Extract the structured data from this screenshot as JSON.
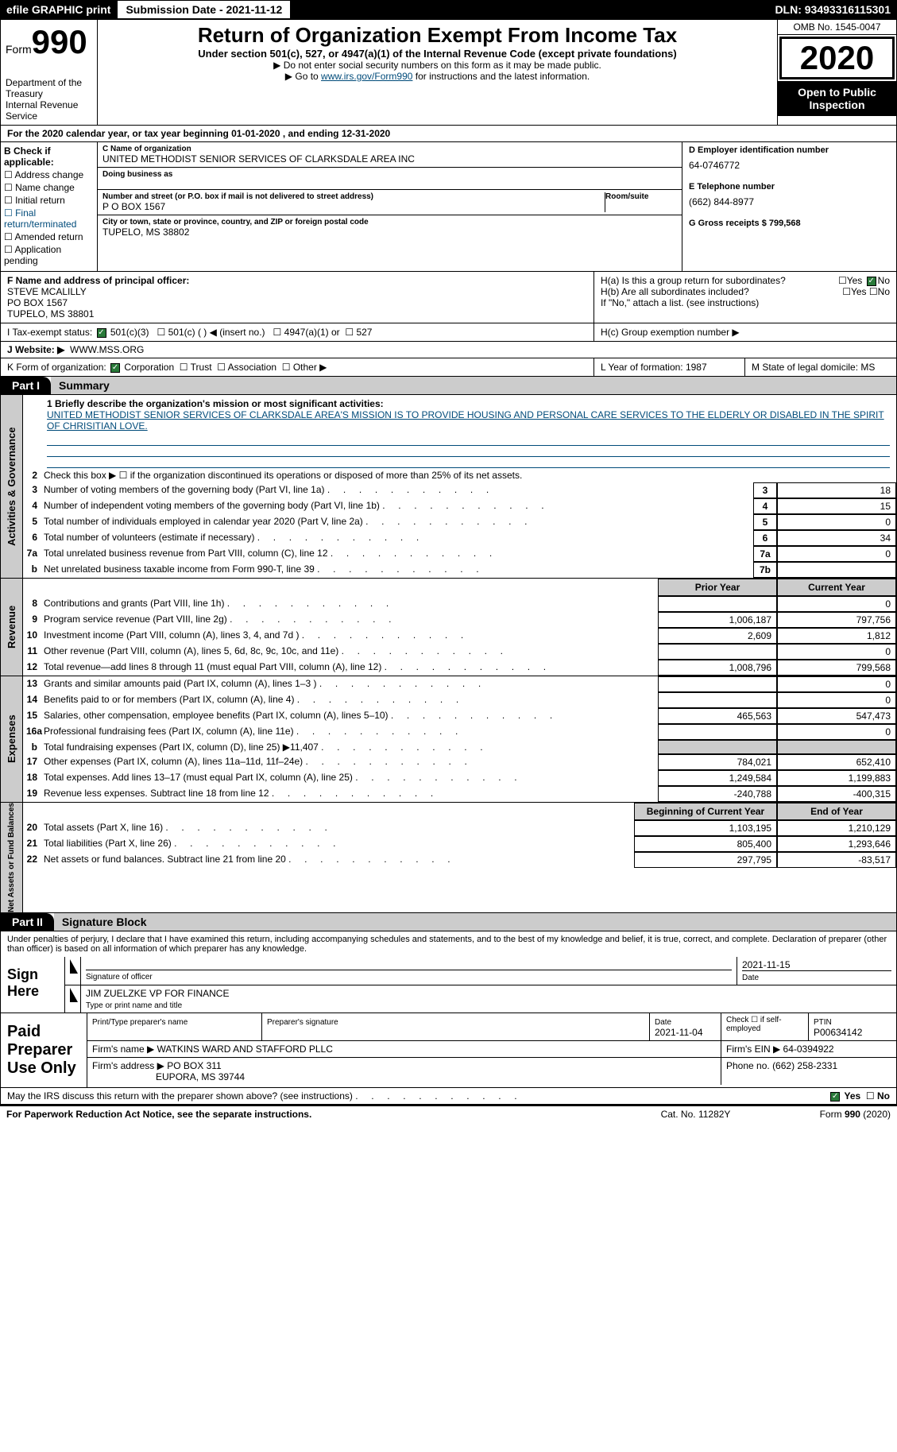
{
  "header": {
    "efile": "efile GRAPHIC print",
    "sub_label": "Submission Date - 2021-11-12",
    "dln": "DLN: 93493316115301"
  },
  "form_box": {
    "form_word": "Form",
    "num": "990",
    "dept": "Department of the Treasury\nInternal Revenue Service"
  },
  "title": {
    "main": "Return of Organization Exempt From Income Tax",
    "sub": "Under section 501(c), 527, or 4947(a)(1) of the Internal Revenue Code (except private foundations)",
    "note1": "▶ Do not enter social security numbers on this form as it may be made public.",
    "note2_a": "▶ Go to ",
    "note2_link": "www.irs.gov/Form990",
    "note2_b": " for instructions and the latest information."
  },
  "right": {
    "omb": "OMB No. 1545-0047",
    "year": "2020",
    "inspect": "Open to Public Inspection"
  },
  "period": "For the 2020 calendar year, or tax year beginning 01-01-2020     , and ending 12-31-2020",
  "B": {
    "head": "B Check if applicable:",
    "items": [
      "Address change",
      "Name change",
      "Initial return",
      "Final return/terminated",
      "Amended return",
      "Application pending"
    ]
  },
  "C": {
    "name_lbl": "C Name of organization",
    "name": "UNITED METHODIST SENIOR SERVICES OF CLARKSDALE AREA INC",
    "dba_lbl": "Doing business as",
    "addr_lbl": "Number and street (or P.O. box if mail is not delivered to street address)",
    "room_lbl": "Room/suite",
    "addr": "P O BOX 1567",
    "city_lbl": "City or town, state or province, country, and ZIP or foreign postal code",
    "city": "TUPELO, MS  38802"
  },
  "D": {
    "ein_lbl": "D Employer identification number",
    "ein": "64-0746772",
    "phone_lbl": "E Telephone number",
    "phone": "(662) 844-8977",
    "gross_lbl": "G Gross receipts $ 799,568"
  },
  "F": {
    "lbl": "F  Name and address of principal officer:",
    "name": "STEVE MCALILLY",
    "addr1": "PO BOX 1567",
    "addr2": "TUPELO, MS  38801"
  },
  "H": {
    "a": "H(a)  Is this a group return for subordinates?",
    "b": "H(b)  Are all subordinates included?",
    "note": "If \"No,\" attach a list. (see instructions)",
    "c": "H(c)  Group exemption number ▶",
    "yes": "Yes",
    "no": "No"
  },
  "I": {
    "lbl": "I     Tax-exempt status:",
    "o1": "501(c)(3)",
    "o2": "501(c) (   ) ◀ (insert no.)",
    "o3": "4947(a)(1) or",
    "o4": "527"
  },
  "J": {
    "lbl": "J    Website: ▶",
    "val": "WWW.MSS.ORG"
  },
  "K": {
    "lbl": "K Form of organization:",
    "o1": "Corporation",
    "o2": "Trust",
    "o3": "Association",
    "o4": "Other ▶"
  },
  "LM": {
    "l": "L Year of formation: 1987",
    "m": "M State of legal domicile: MS"
  },
  "parts": {
    "p1": "Part I",
    "p1_t": "Summary",
    "p2": "Part II",
    "p2_t": "Signature Block"
  },
  "vtabs": {
    "gov": "Activities & Governance",
    "rev": "Revenue",
    "exp": "Expenses",
    "net": "Net Assets or\nFund Balances"
  },
  "mission": {
    "lbl": "1  Briefly describe the organization's mission or most significant activities:",
    "txt": "UNITED METHODIST SENIOR SERVICES OF CLARKSDALE AREA'S MISSION IS TO PROVIDE HOUSING AND PERSONAL CARE SERVICES TO THE ELDERLY OR DISABLED IN THE SPIRIT OF CHRISITIAN LOVE."
  },
  "line2": "Check this box ▶ ☐  if the organization discontinued its operations or disposed of more than 25% of its net assets.",
  "gov_rows": [
    {
      "n": "3",
      "t": "Number of voting members of the governing body (Part VI, line 1a)",
      "box": "3",
      "v": "18"
    },
    {
      "n": "4",
      "t": "Number of independent voting members of the governing body (Part VI, line 1b)",
      "box": "4",
      "v": "15"
    },
    {
      "n": "5",
      "t": "Total number of individuals employed in calendar year 2020 (Part V, line 2a)",
      "box": "5",
      "v": "0"
    },
    {
      "n": "6",
      "t": "Total number of volunteers (estimate if necessary)",
      "box": "6",
      "v": "34"
    },
    {
      "n": "7a",
      "t": "Total unrelated business revenue from Part VIII, column (C), line 12",
      "box": "7a",
      "v": "0"
    },
    {
      "n": "b",
      "t": "Net unrelated business taxable income from Form 990-T, line 39",
      "box": "7b",
      "v": ""
    }
  ],
  "col_hdrs": {
    "py": "Prior Year",
    "cy": "Current Year",
    "by": "Beginning of Current Year",
    "ey": "End of Year"
  },
  "rev_rows": [
    {
      "n": "8",
      "t": "Contributions and grants (Part VIII, line 1h)",
      "py": "",
      "cy": "0"
    },
    {
      "n": "9",
      "t": "Program service revenue (Part VIII, line 2g)",
      "py": "1,006,187",
      "cy": "797,756"
    },
    {
      "n": "10",
      "t": "Investment income (Part VIII, column (A), lines 3, 4, and 7d )",
      "py": "2,609",
      "cy": "1,812"
    },
    {
      "n": "11",
      "t": "Other revenue (Part VIII, column (A), lines 5, 6d, 8c, 9c, 10c, and 11e)",
      "py": "",
      "cy": "0"
    },
    {
      "n": "12",
      "t": "Total revenue—add lines 8 through 11 (must equal Part VIII, column (A), line 12)",
      "py": "1,008,796",
      "cy": "799,568"
    }
  ],
  "exp_rows": [
    {
      "n": "13",
      "t": "Grants and similar amounts paid (Part IX, column (A), lines 1–3 )",
      "py": "",
      "cy": "0"
    },
    {
      "n": "14",
      "t": "Benefits paid to or for members (Part IX, column (A), line 4)",
      "py": "",
      "cy": "0"
    },
    {
      "n": "15",
      "t": "Salaries, other compensation, employee benefits (Part IX, column (A), lines 5–10)",
      "py": "465,563",
      "cy": "547,473"
    },
    {
      "n": "16a",
      "t": "Professional fundraising fees (Part IX, column (A), line 11e)",
      "py": "",
      "cy": "0"
    },
    {
      "n": "b",
      "t": "Total fundraising expenses (Part IX, column (D), line 25) ▶11,407",
      "py": "shade",
      "cy": "shade"
    },
    {
      "n": "17",
      "t": "Other expenses (Part IX, column (A), lines 11a–11d, 11f–24e)",
      "py": "784,021",
      "cy": "652,410"
    },
    {
      "n": "18",
      "t": "Total expenses. Add lines 13–17 (must equal Part IX, column (A), line 25)",
      "py": "1,249,584",
      "cy": "1,199,883"
    },
    {
      "n": "19",
      "t": "Revenue less expenses. Subtract line 18 from line 12",
      "py": "-240,788",
      "cy": "-400,315"
    }
  ],
  "net_rows": [
    {
      "n": "20",
      "t": "Total assets (Part X, line 16)",
      "py": "1,103,195",
      "cy": "1,210,129"
    },
    {
      "n": "21",
      "t": "Total liabilities (Part X, line 26)",
      "py": "805,400",
      "cy": "1,293,646"
    },
    {
      "n": "22",
      "t": "Net assets or fund balances. Subtract line 21 from line 20",
      "py": "297,795",
      "cy": "-83,517"
    }
  ],
  "sig": {
    "decl": "Under penalties of perjury, I declare that I have examined this return, including accompanying schedules and statements, and to the best of my knowledge and belief, it is true, correct, and complete. Declaration of preparer (other than officer) is based on all information of which preparer has any knowledge.",
    "sign_here": "Sign Here",
    "sig_officer": "Signature of officer",
    "date": "Date",
    "date_val": "2021-11-15",
    "name": "JIM ZUELZKE VP FOR FINANCE",
    "name_lbl": "Type or print name and title",
    "paid": "Paid Preparer Use Only",
    "prep_name_lbl": "Print/Type preparer's name",
    "prep_sig_lbl": "Preparer's signature",
    "prep_date_lbl": "Date",
    "prep_date": "2021-11-04",
    "check_lbl": "Check ☐ if self-employed",
    "ptin_lbl": "PTIN",
    "ptin": "P00634142",
    "firm_name_lbl": "Firm's name     ▶",
    "firm_name": "WATKINS WARD AND STAFFORD PLLC",
    "firm_ein_lbl": "Firm's EIN ▶",
    "firm_ein": "64-0394922",
    "firm_addr_lbl": "Firm's address ▶",
    "firm_addr1": "PO BOX 311",
    "firm_addr2": "EUPORA, MS  39744",
    "firm_phone_lbl": "Phone no.",
    "firm_phone": "(662) 258-2331"
  },
  "discuss": "May the IRS discuss this return with the preparer shown above? (see instructions)",
  "footer": {
    "l": "For Paperwork Reduction Act Notice, see the separate instructions.",
    "c": "Cat. No. 11282Y",
    "r": "Form 990 (2020)"
  }
}
